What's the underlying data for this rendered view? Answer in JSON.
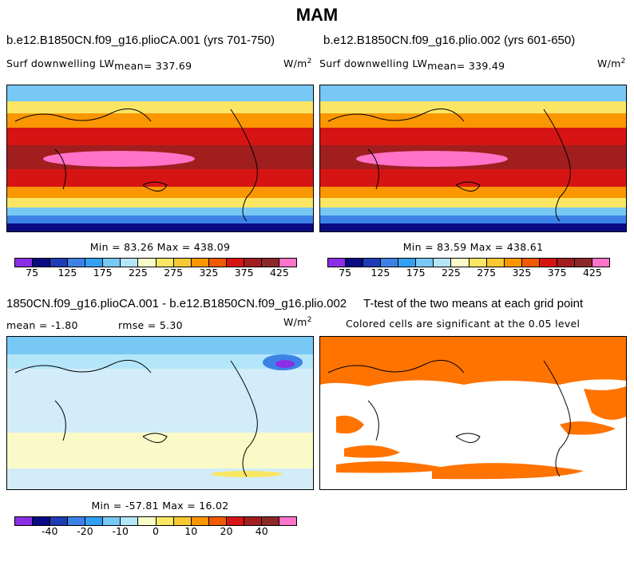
{
  "title": "MAM",
  "panels": {
    "top_left": {
      "case_title": "b.e12.B1850CN.f09_g16.plioCA.001 (yrs 701-750)",
      "variable": "Surf  downwelling LW",
      "mean_label": "mean= 337.69",
      "units": "W/m",
      "units_exp": "2",
      "minmax": "Min =   83.26 Max =  438.09"
    },
    "top_right": {
      "case_title": "b.e12.B1850CN.f09_g16.plio.002 (yrs 601-650)",
      "variable": "Surf  downwelling LW",
      "mean_label": "mean= 339.49",
      "units": "W/m",
      "units_exp": "2",
      "minmax": "Min =   83.59 Max =  438.61"
    },
    "bottom_left": {
      "case_title": "1850CN.f09_g16.plioCA.001 - b.e12.B1850CN.f09_g16.plio.002",
      "mean_label": "mean =   -1.80",
      "rmse_label": "rmse =    5.30",
      "units": "W/m",
      "units_exp": "2",
      "minmax": "Min = -57.81 Max =   16.02"
    },
    "bottom_right": {
      "case_title": "T-test of the two means at each grid point",
      "subtitle": "Colored cells are significant at the 0.05 level",
      "significance_color": "#ff7300"
    }
  },
  "colorbar_abs": {
    "colors": [
      "#8c2ee6",
      "#0a0a82",
      "#1e3cb4",
      "#3c82e6",
      "#32a0f0",
      "#78c8f5",
      "#b4e6fa",
      "#fafac8",
      "#fae664",
      "#fac832",
      "#fa9600",
      "#f05a00",
      "#d71414",
      "#a01e1e",
      "#8c2828",
      "#ff73c8"
    ],
    "ticks": [
      "75",
      "125",
      "175",
      "225",
      "275",
      "325",
      "375",
      "425"
    ]
  },
  "colorbar_diff": {
    "colors": [
      "#8c2ee6",
      "#0a0a82",
      "#1e3cb4",
      "#3c82e6",
      "#32a0f0",
      "#78c8f5",
      "#b4e6fa",
      "#fafac8",
      "#fae664",
      "#fac832",
      "#fa9600",
      "#f05a00",
      "#d71414",
      "#a01e1e",
      "#8c2828",
      "#ff73c8"
    ],
    "ticks": [
      "-40",
      "-20",
      "-10",
      "0",
      "10",
      "20",
      "40"
    ]
  }
}
